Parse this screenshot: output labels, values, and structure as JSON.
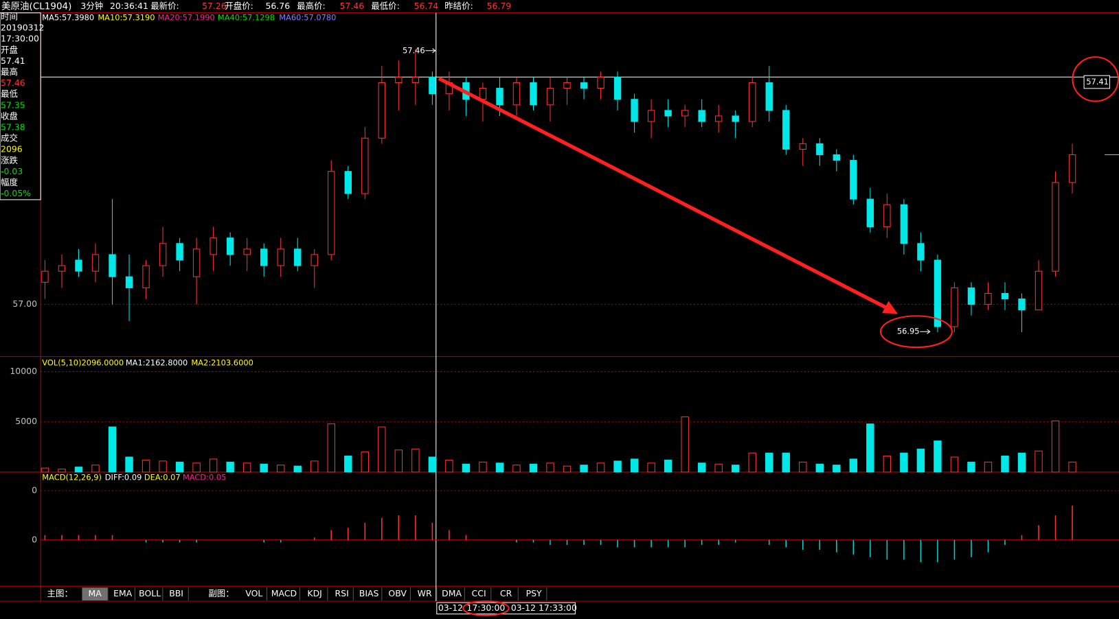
{
  "header": {
    "title": "美原油(CL1904)",
    "period": "3分钟",
    "clock": "20:36:41",
    "fields": [
      {
        "label": "最新价:",
        "value": "57.26"
      },
      {
        "label": "开盘价:",
        "value": "56.76"
      },
      {
        "label": "最高价:",
        "value": "57.46"
      },
      {
        "label": "最低价:",
        "value": "56.74"
      },
      {
        "label": "昨结价:",
        "value": "56.79"
      }
    ]
  },
  "info_panel": [
    {
      "label": "时间",
      "value": "20190312"
    },
    {
      "label": null,
      "value": "17:30:00"
    },
    {
      "label": "开盘",
      "value": "57.41"
    },
    {
      "label": "最高",
      "value": "57.46"
    },
    {
      "label": "最低",
      "value": "57.35"
    },
    {
      "label": "收盘",
      "value": "57.38"
    },
    {
      "label": "成交",
      "value": "2096"
    },
    {
      "label": "涨跌",
      "value": "-0.03"
    },
    {
      "label": "幅度",
      "value": "-0.05%"
    }
  ],
  "tabs": {
    "main_label": "主图：",
    "main": [
      "MA",
      "EMA",
      "BOLL",
      "BBI"
    ],
    "sub_label": "副图：",
    "sub": [
      "VOL",
      "MACD",
      "KDJ",
      "RSI",
      "BIAS",
      "OBV",
      "WR",
      "DMA",
      "CCI",
      "CR",
      "PSY"
    ],
    "active": "MA"
  },
  "time_bar": {
    "date": "03-12",
    "time": "17:30:00",
    "next": "03-12 17:33:00"
  },
  "chart_data": [
    {
      "type": "candlestick",
      "legend": [
        "MA5:57.3980",
        "MA10:57.3190",
        "MA20:57.1990",
        "MA40:57.1298",
        "MA60:57.0780"
      ],
      "ylim": [
        56.906,
        57.526
      ],
      "yticks": [
        {
          "value": 57,
          "label": "57.00"
        }
      ],
      "annotations": {
        "high": "57.46",
        "low": "56.95",
        "cursor": "57.41"
      },
      "up_color": "#ff3232",
      "down_color": "#00e8e8",
      "ohlc": [
        [
          57.04,
          57.08,
          57.01,
          57.06
        ],
        [
          57.06,
          57.09,
          57.03,
          57.07
        ],
        [
          57.08,
          57.1,
          57.05,
          57.06
        ],
        [
          57.06,
          57.11,
          57.04,
          57.09
        ],
        [
          57.09,
          57.19,
          57.0,
          57.05
        ],
        [
          57.05,
          57.09,
          56.97,
          57.03
        ],
        [
          57.03,
          57.08,
          57.01,
          57.07
        ],
        [
          57.07,
          57.14,
          57.05,
          57.11
        ],
        [
          57.11,
          57.12,
          57.06,
          57.08
        ],
        [
          57.05,
          57.12,
          57.0,
          57.1
        ],
        [
          57.09,
          57.14,
          57.06,
          57.12
        ],
        [
          57.12,
          57.13,
          57.07,
          57.09
        ],
        [
          57.09,
          57.12,
          57.06,
          57.1
        ],
        [
          57.1,
          57.11,
          57.05,
          57.07
        ],
        [
          57.07,
          57.12,
          57.05,
          57.1
        ],
        [
          57.1,
          57.12,
          57.06,
          57.07
        ],
        [
          57.07,
          57.1,
          57.03,
          57.09
        ],
        [
          57.09,
          57.26,
          57.08,
          57.24
        ],
        [
          57.24,
          57.25,
          57.19,
          57.2
        ],
        [
          57.2,
          57.32,
          57.19,
          57.3
        ],
        [
          57.3,
          57.43,
          57.29,
          57.4
        ],
        [
          57.4,
          57.44,
          57.35,
          57.41
        ],
        [
          57.4,
          57.46,
          57.36,
          57.41
        ],
        [
          57.41,
          57.42,
          57.36,
          57.38
        ],
        [
          57.38,
          57.42,
          57.35,
          57.4
        ],
        [
          57.4,
          57.41,
          57.34,
          57.37
        ],
        [
          57.37,
          57.4,
          57.33,
          57.39
        ],
        [
          57.39,
          57.41,
          57.34,
          57.36
        ],
        [
          57.36,
          57.41,
          57.34,
          57.4
        ],
        [
          57.4,
          57.41,
          57.35,
          57.36
        ],
        [
          57.36,
          57.41,
          57.33,
          57.39
        ],
        [
          57.39,
          57.41,
          57.36,
          57.4
        ],
        [
          57.4,
          57.41,
          57.37,
          57.39
        ],
        [
          57.39,
          57.42,
          57.37,
          57.41
        ],
        [
          57.41,
          57.42,
          57.35,
          57.37
        ],
        [
          57.37,
          57.38,
          57.31,
          57.33
        ],
        [
          57.33,
          57.37,
          57.3,
          57.35
        ],
        [
          57.35,
          57.37,
          57.32,
          57.34
        ],
        [
          57.34,
          57.36,
          57.32,
          57.35
        ],
        [
          57.35,
          57.37,
          57.32,
          57.33
        ],
        [
          57.33,
          57.36,
          57.31,
          57.34
        ],
        [
          57.34,
          57.35,
          57.3,
          57.33
        ],
        [
          57.33,
          57.41,
          57.32,
          57.4
        ],
        [
          57.4,
          57.43,
          57.33,
          57.35
        ],
        [
          57.35,
          57.36,
          57.27,
          57.28
        ],
        [
          57.28,
          57.3,
          57.25,
          57.29
        ],
        [
          57.29,
          57.3,
          57.25,
          57.27
        ],
        [
          57.27,
          57.28,
          57.24,
          57.26
        ],
        [
          57.26,
          57.27,
          57.18,
          57.19
        ],
        [
          57.19,
          57.21,
          57.13,
          57.14
        ],
        [
          57.14,
          57.2,
          57.12,
          57.18
        ],
        [
          57.18,
          57.19,
          57.09,
          57.11
        ],
        [
          57.11,
          57.13,
          57.06,
          57.08
        ],
        [
          57.08,
          57.09,
          56.95,
          56.96
        ],
        [
          56.96,
          57.04,
          56.95,
          57.03
        ],
        [
          57.03,
          57.04,
          56.98,
          57.0
        ],
        [
          57.0,
          57.04,
          56.99,
          57.02
        ],
        [
          57.02,
          57.04,
          56.99,
          57.01
        ],
        [
          57.01,
          57.02,
          56.95,
          56.99
        ],
        [
          56.99,
          57.08,
          56.99,
          57.06
        ],
        [
          57.06,
          57.24,
          57.05,
          57.22
        ],
        [
          57.22,
          57.29,
          57.2,
          57.27
        ]
      ]
    },
    {
      "type": "bar",
      "legend": [
        "VOL(5,10)2096.0000",
        "MA1:2162.8000",
        "MA2:2103.6000"
      ],
      "ylim": [
        0,
        11500
      ],
      "yticks": [
        10000,
        5000
      ],
      "values": [
        400,
        300,
        500,
        700,
        4500,
        1500,
        1200,
        1100,
        1000,
        900,
        1300,
        1000,
        900,
        800,
        700,
        600,
        1100,
        4800,
        1600,
        2000,
        4500,
        2200,
        2300,
        1500,
        1200,
        800,
        1000,
        900,
        700,
        800,
        900,
        600,
        700,
        900,
        1100,
        1300,
        900,
        1200,
        5500,
        900,
        800,
        700,
        1900,
        1900,
        1900,
        1000,
        800,
        700,
        1300,
        4800,
        1600,
        1900,
        2300,
        3100,
        1500,
        1000,
        1000,
        1600,
        1900,
        2100,
        5100,
        1000
      ]
    },
    {
      "type": "bar",
      "legend": [
        "MACD(12,26,9)",
        "DIFF:0.09",
        "DEA:0.07",
        "MACD:0.05"
      ],
      "ylim": [
        -0.094,
        0.138
      ],
      "yticks": [
        {
          "value": 0.1,
          "label": "0"
        },
        0
      ],
      "values": [
        0.01,
        0.01,
        0.01,
        0.01,
        0.01,
        0,
        -0.005,
        -0.005,
        -0.005,
        -0.005,
        0,
        0,
        0,
        -0.005,
        -0.005,
        0,
        0.005,
        0.02,
        0.025,
        0.035,
        0.045,
        0.05,
        0.05,
        0.035,
        0.02,
        0.01,
        0,
        0,
        -0.005,
        -0.005,
        -0.01,
        -0.01,
        -0.01,
        -0.01,
        -0.015,
        -0.015,
        -0.015,
        -0.015,
        -0.015,
        -0.01,
        -0.01,
        -0.005,
        0,
        -0.01,
        -0.015,
        -0.02,
        -0.02,
        -0.025,
        -0.03,
        -0.035,
        -0.04,
        -0.04,
        -0.045,
        -0.045,
        -0.04,
        -0.035,
        -0.025,
        -0.01,
        0.01,
        0.03,
        0.05,
        0.07
      ]
    }
  ]
}
